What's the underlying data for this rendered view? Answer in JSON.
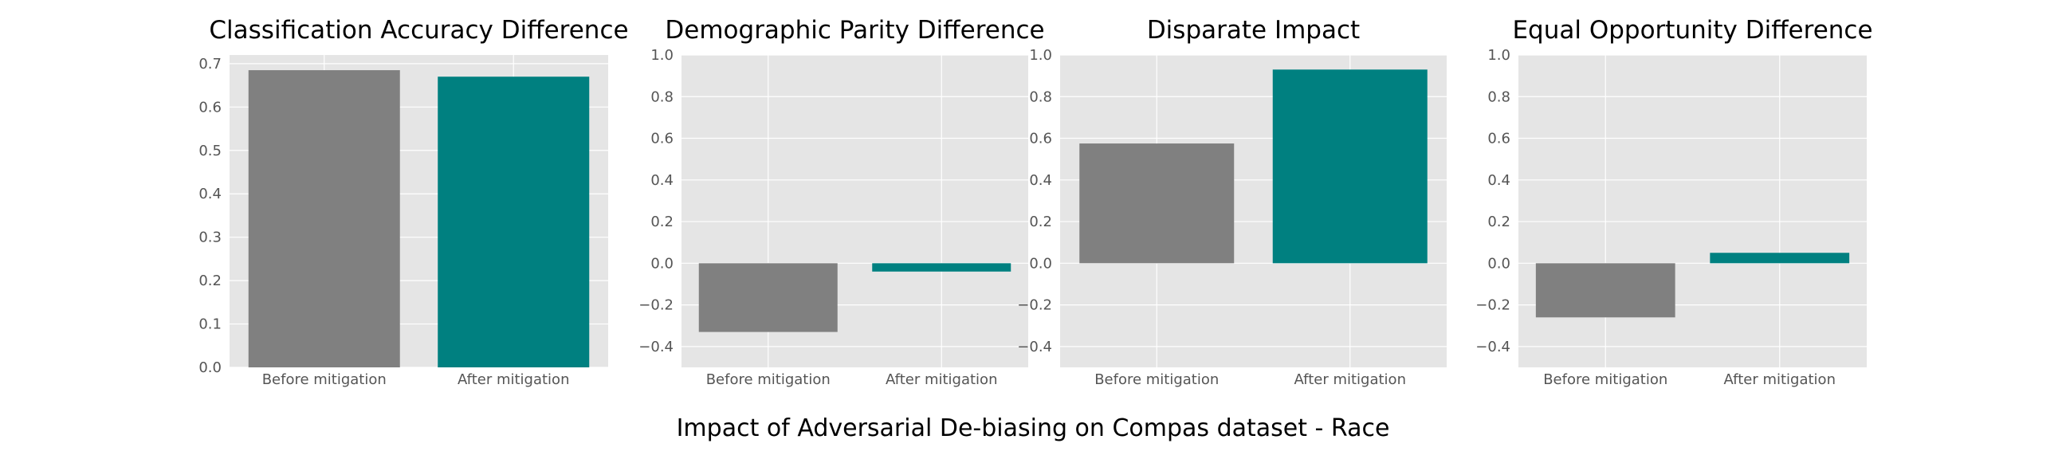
{
  "figure": {
    "suptitle": "Impact of Adversarial De-biasing on Compas dataset - Race"
  },
  "colors": {
    "before": "#808080",
    "after": "#008080",
    "plot_background": "#e5e5e5",
    "grid": "#ffffff",
    "tick_text": "#555555"
  },
  "chart_data": [
    {
      "type": "bar",
      "title": "Classification Accuracy Difference",
      "categories": [
        "Before mitigation",
        "After mitigation"
      ],
      "values": [
        0.685,
        0.67
      ],
      "ylim": [
        0,
        0.72
      ],
      "yticks": [
        0.0,
        0.1,
        0.2,
        0.3,
        0.4,
        0.5,
        0.6,
        0.7
      ],
      "ytick_labels": [
        "0.0",
        "0.1",
        "0.2",
        "0.3",
        "0.4",
        "0.5",
        "0.6",
        "0.7"
      ],
      "xlabel": "",
      "ylabel": "",
      "grid": true
    },
    {
      "type": "bar",
      "title": "Demographic Parity Difference",
      "categories": [
        "Before mitigation",
        "After mitigation"
      ],
      "values": [
        -0.33,
        -0.04
      ],
      "ylim": [
        -0.5,
        1.0
      ],
      "yticks": [
        -0.4,
        -0.2,
        0.0,
        0.2,
        0.4,
        0.6,
        0.8,
        1.0
      ],
      "ytick_labels": [
        "−0.4",
        "−0.2",
        "0.0",
        "0.2",
        "0.4",
        "0.6",
        "0.8",
        "1.0"
      ],
      "xlabel": "",
      "ylabel": "",
      "grid": true
    },
    {
      "type": "bar",
      "title": "Disparate Impact",
      "categories": [
        "Before mitigation",
        "After mitigation"
      ],
      "values": [
        0.575,
        0.93
      ],
      "ylim": [
        -0.5,
        1.0
      ],
      "yticks": [
        -0.4,
        -0.2,
        0.0,
        0.2,
        0.4,
        0.6,
        0.8,
        1.0
      ],
      "ytick_labels": [
        "−0.4",
        "−0.2",
        "0.0",
        "0.2",
        "0.4",
        "0.6",
        "0.8",
        "1.0"
      ],
      "xlabel": "",
      "ylabel": "",
      "grid": true
    },
    {
      "type": "bar",
      "title": "Equal Opportunity Difference",
      "categories": [
        "Before mitigation",
        "After mitigation"
      ],
      "values": [
        -0.26,
        0.05
      ],
      "ylim": [
        -0.5,
        1.0
      ],
      "yticks": [
        -0.4,
        -0.2,
        0.0,
        0.2,
        0.4,
        0.6,
        0.8,
        1.0
      ],
      "ytick_labels": [
        "−0.4",
        "−0.2",
        "0.0",
        "0.2",
        "0.4",
        "0.6",
        "0.8",
        "1.0"
      ],
      "xlabel": "",
      "ylabel": "",
      "grid": true
    }
  ]
}
